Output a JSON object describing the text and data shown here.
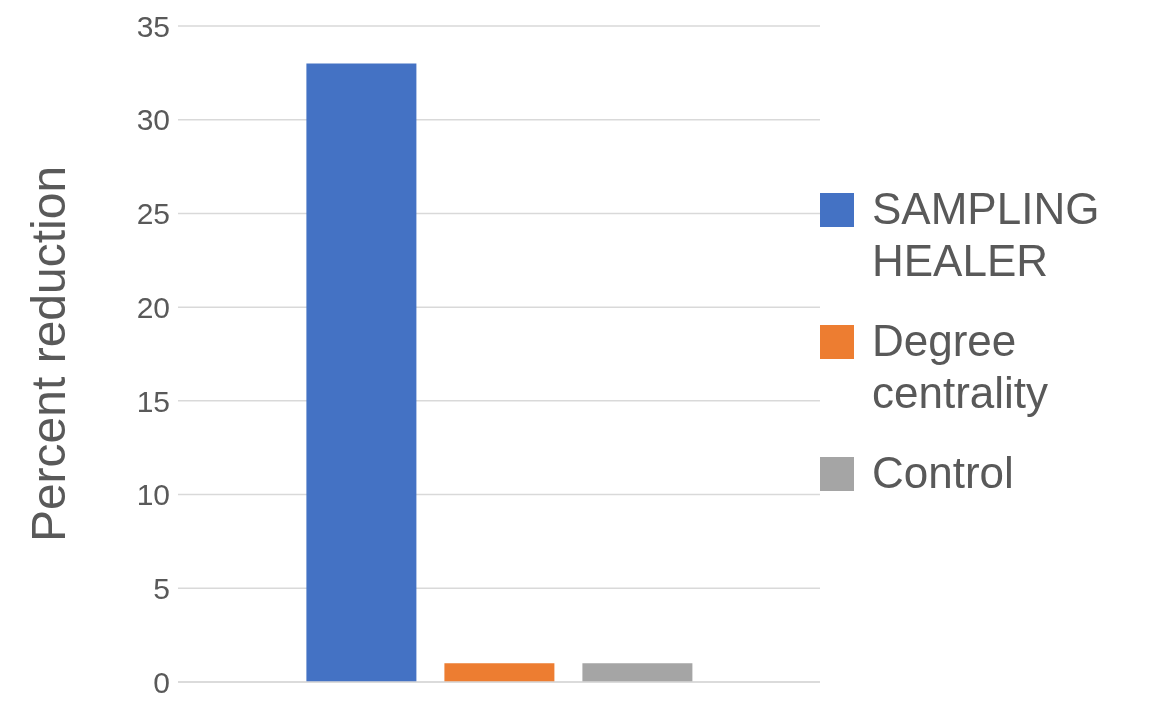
{
  "chart_data": {
    "type": "bar",
    "ylabel": "Percent reduction",
    "categories": [
      null
    ],
    "series": [
      {
        "name": "SAMPLING HEALER",
        "color": "#4472c4",
        "values": [
          33
        ]
      },
      {
        "name": "Degree centrality",
        "color": "#ed7d31",
        "values": [
          1
        ]
      },
      {
        "name": "Control",
        "color": "#a5a5a5",
        "values": [
          1
        ]
      }
    ],
    "ylim": [
      0,
      35
    ],
    "yticks": [
      0,
      5,
      10,
      15,
      20,
      25,
      30,
      35
    ],
    "grid": "y",
    "legend": "right"
  }
}
